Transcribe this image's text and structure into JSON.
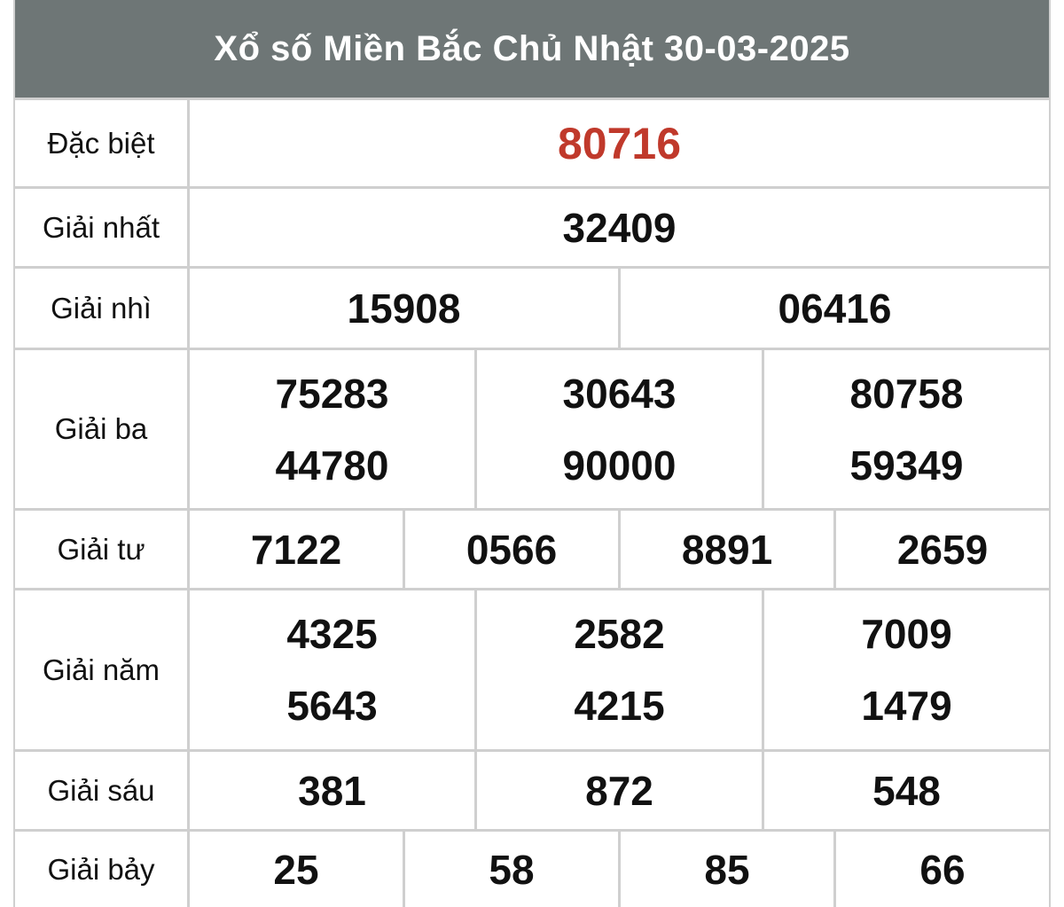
{
  "title": "Xổ số Miền Bắc Chủ Nhật 30-03-2025",
  "colors": {
    "header_bg": "#6e7676",
    "special_prize": "#c0392b"
  },
  "prizes": [
    {
      "label": "Đặc biệt",
      "cells": [
        [
          "80716"
        ]
      ]
    },
    {
      "label": "Giải nhất",
      "cells": [
        [
          "32409"
        ]
      ]
    },
    {
      "label": "Giải nhì",
      "cells": [
        [
          "15908"
        ],
        [
          "06416"
        ]
      ]
    },
    {
      "label": "Giải ba",
      "cells": [
        [
          "75283",
          "44780"
        ],
        [
          "30643",
          "90000"
        ],
        [
          "80758",
          "59349"
        ]
      ]
    },
    {
      "label": "Giải tư",
      "cells": [
        [
          "7122"
        ],
        [
          "0566"
        ],
        [
          "8891"
        ],
        [
          "2659"
        ]
      ]
    },
    {
      "label": "Giải năm",
      "cells": [
        [
          "4325",
          "5643"
        ],
        [
          "2582",
          "4215"
        ],
        [
          "7009",
          "1479"
        ]
      ]
    },
    {
      "label": "Giải sáu",
      "cells": [
        [
          "381"
        ],
        [
          "872"
        ],
        [
          "548"
        ]
      ]
    },
    {
      "label": "Giải bảy",
      "cells": [
        [
          "25"
        ],
        [
          "58"
        ],
        [
          "85"
        ],
        [
          "66"
        ]
      ]
    }
  ]
}
